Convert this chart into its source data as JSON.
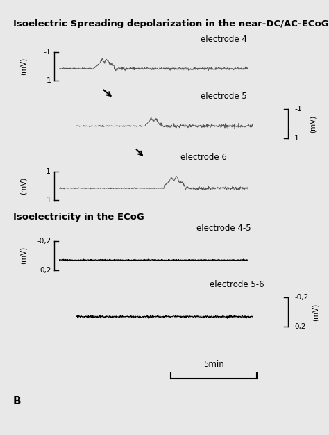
{
  "title1": "Isoelectric Spreading depolarization in the near-DC/AC-ECoG",
  "title2": "Isoelectricity in the ECoG",
  "electrode_labels": [
    "electrode 4",
    "electrode 5",
    "electrode 6"
  ],
  "electrode_labels_bottom": [
    "electrode 4-5",
    "electrode 5-6"
  ],
  "label_B": "B",
  "scale_bar": "5min",
  "bg_color": "#e8e8e8",
  "line_color": "#555555",
  "title_fontsize": 9.5,
  "label_fontsize": 8.5
}
